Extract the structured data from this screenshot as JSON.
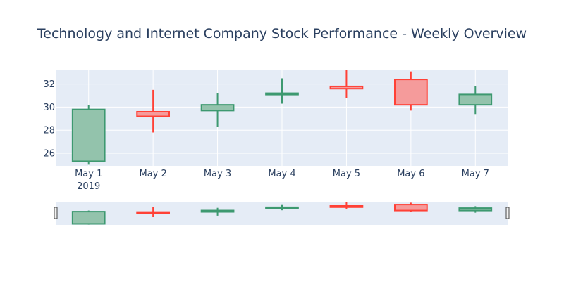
{
  "chart_data": {
    "type": "candlestick",
    "title": "Technology and Internet Company Stock Performance - Weekly Overview",
    "x": [
      "May 1",
      "May 2",
      "May 3",
      "May 4",
      "May 5",
      "May 6",
      "May 7"
    ],
    "x_year_label": "2019",
    "open": [
      25.3,
      29.6,
      29.7,
      31.1,
      31.8,
      32.4,
      30.2
    ],
    "high": [
      30.2,
      31.5,
      31.2,
      32.5,
      33.2,
      33.1,
      31.8
    ],
    "low": [
      25.0,
      27.8,
      28.3,
      30.3,
      30.8,
      29.7,
      29.4
    ],
    "close": [
      29.8,
      29.2,
      30.2,
      31.2,
      31.6,
      30.2,
      31.1
    ],
    "ylim": [
      24.9,
      33.2
    ],
    "yticks": [
      26,
      28,
      30,
      32
    ],
    "grid": true,
    "rangeslider": true,
    "colors": {
      "increasing_line": "#3D9970",
      "increasing_fill": "#93C3AC",
      "decreasing_line": "#FF4136",
      "decreasing_fill": "#F59B9B",
      "plot_bg": "#E5ECF6",
      "text": "#2A3F5F",
      "grid": "#FFFFFF"
    }
  }
}
